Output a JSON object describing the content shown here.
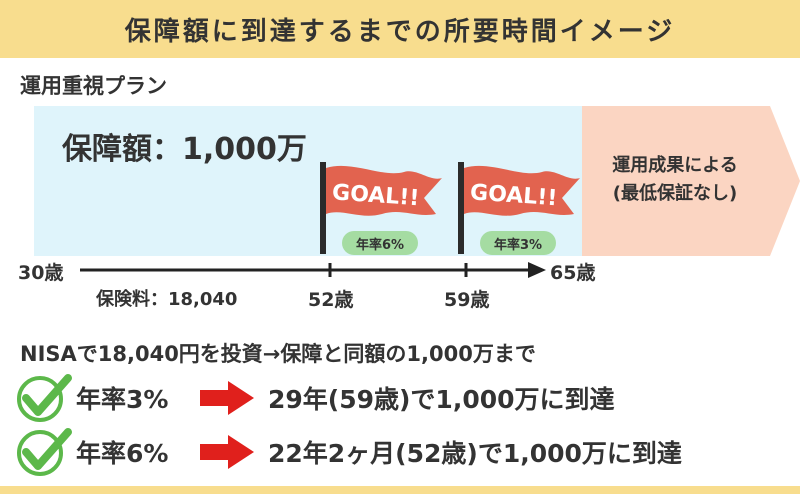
{
  "title": "保障額に到達するまでの所要時間イメージ",
  "plan_name": "運用重視プラン",
  "coverage_amount": "保障額：1,000万",
  "result_text": {
    "line1": "運用成果による",
    "line2": "(最低保証なし)"
  },
  "flags": [
    {
      "label": "GOAL!!",
      "rate": "年率6%"
    },
    {
      "label": "GOAL!!",
      "rate": "年率3%"
    }
  ],
  "timeline": {
    "start_age": "30歳",
    "end_age": "65歳",
    "markers": [
      "52歳",
      "59歳"
    ],
    "premium": "保険料：18,040"
  },
  "summary": "NISAで18,040円を投資→保障と同額の1,000万まで",
  "rows": [
    {
      "rate": "年率3%",
      "outcome": "29年(59歳)で1,000万に到達"
    },
    {
      "rate": "年率6%",
      "outcome": "22年2ヶ月(52歳)で1,000万に到達"
    }
  ],
  "colors": {
    "title_bg": "#f8dd8e",
    "sky_bg": "#dff4fb",
    "result_bg": "#fbd5c2",
    "flag_red": "#e2634f",
    "pill_green": "#a5dca2",
    "check_green": "#5cb84a",
    "arrow_red": "#e0201c"
  }
}
